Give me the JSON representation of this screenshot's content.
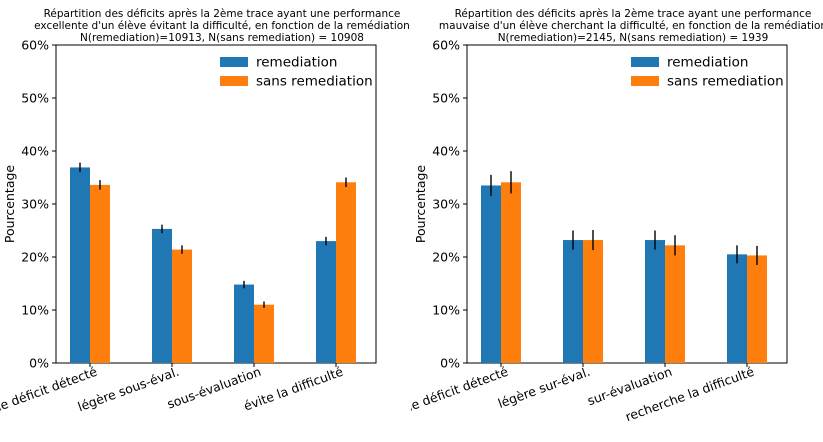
{
  "chart_data": [
    {
      "type": "bar",
      "title": "Répartition des déficits après la 2ème trace ayant une performance",
      "title_line2": "excellente d'un élève évitant la difficulté, en fonction de la remédiation",
      "subtitle": "N(remediation)=10913, N(sans remediation) = 10908",
      "xlabel": "",
      "ylabel": "Pourcentage",
      "ylim": [
        0,
        60
      ],
      "yticks": [
        "0%",
        "10%",
        "20%",
        "30%",
        "40%",
        "50%",
        "60%"
      ],
      "categories": [
        "pas de déficit détecté",
        "légère sous-éval.",
        "sous-évaluation",
        "évite la difficulté"
      ],
      "series": [
        {
          "name": "remediation",
          "color": "#1f77b4",
          "values": [
            36.9,
            25.3,
            14.8,
            23.0
          ],
          "errors": [
            0.9,
            0.8,
            0.7,
            0.8
          ]
        },
        {
          "name": "sans remediation",
          "color": "#ff7f0e",
          "values": [
            33.6,
            21.4,
            11.0,
            34.1
          ],
          "errors": [
            0.9,
            0.8,
            0.6,
            0.9
          ]
        }
      ],
      "grid": false,
      "legend_position": "top-right"
    },
    {
      "type": "bar",
      "title": "Répartition des déficits après la 2ème trace ayant une performance",
      "title_line2": "mauvaise d'un élève cherchant la difficulté, en fonction de la remédiation",
      "subtitle": "N(remediation)=2145, N(sans remediation) = 1939",
      "xlabel": "",
      "ylabel": "Pourcentage",
      "ylim": [
        0,
        60
      ],
      "yticks": [
        "0%",
        "10%",
        "20%",
        "30%",
        "40%",
        "50%",
        "60%"
      ],
      "categories": [
        "pas de déficit détecté",
        "légère sur-éval.",
        "sur-évaluation",
        "recherche la difficulté"
      ],
      "series": [
        {
          "name": "remediation",
          "color": "#1f77b4",
          "values": [
            33.5,
            23.2,
            23.2,
            20.5
          ],
          "errors": [
            2.0,
            1.8,
            1.8,
            1.7
          ]
        },
        {
          "name": "sans remediation",
          "color": "#ff7f0e",
          "values": [
            34.1,
            23.2,
            22.2,
            20.3
          ],
          "errors": [
            2.1,
            1.9,
            1.9,
            1.8
          ]
        }
      ],
      "grid": false,
      "legend_position": "top-right"
    }
  ]
}
